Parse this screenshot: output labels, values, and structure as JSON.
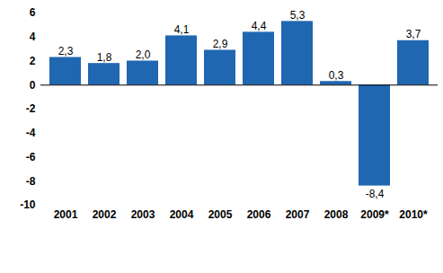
{
  "chart_data": {
    "type": "bar",
    "categories": [
      "2001",
      "2002",
      "2003",
      "2004",
      "2005",
      "2006",
      "2007",
      "2008",
      "2009*",
      "2010*"
    ],
    "values": [
      2.3,
      1.8,
      2.0,
      4.1,
      2.9,
      4.4,
      5.3,
      0.3,
      -8.4,
      3.7
    ],
    "value_labels": [
      "2,3",
      "1,8",
      "2,0",
      "4,1",
      "2,9",
      "4,4",
      "5,3",
      "0,3",
      "-8,4",
      "3,7"
    ],
    "color": "#1f67b1",
    "ylim": [
      -10,
      6
    ],
    "yticks": [
      -10,
      -8,
      -6,
      -4,
      -2,
      0,
      2,
      4,
      6
    ],
    "grid": false,
    "data_labels": true
  }
}
